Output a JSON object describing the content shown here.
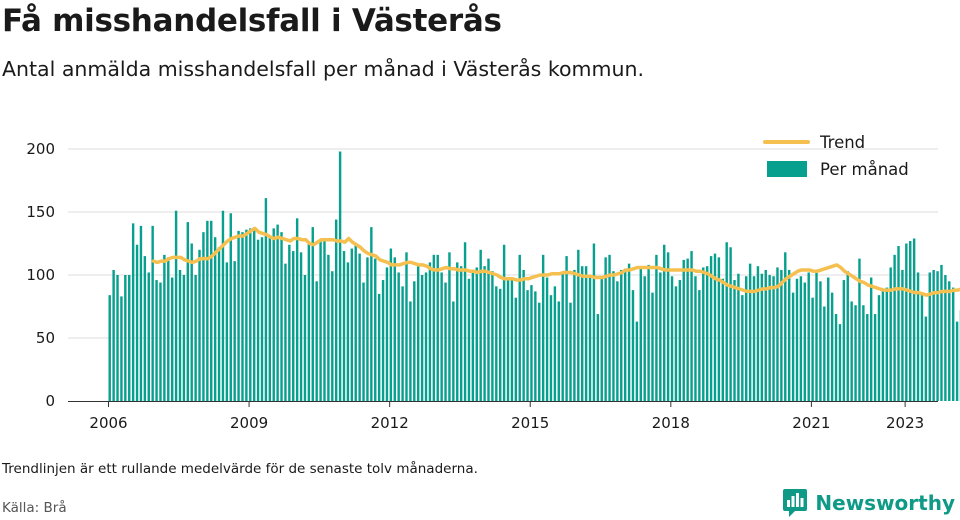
{
  "header": {
    "title": "Få misshandelsfall i Västerås",
    "subtitle": "Antal anmälda misshandelsfall per månad i Västerås kommun."
  },
  "footer": {
    "note": "Trendlinjen är ett rullande medelvärde för de senaste tolv månaderna.",
    "source": "Källa: Brå",
    "brand": "Newsworthy",
    "brand_icon": "newsworthy-logo-icon"
  },
  "colors": {
    "bars": "#07a08f",
    "trend": "#f5c04f",
    "grid": "#dcdcdc",
    "axis": "#333333",
    "brand": "#0e9a87"
  },
  "chart_data": {
    "type": "bar",
    "x_start": "2006-01",
    "x_interval": "month",
    "ylim": [
      0,
      200
    ],
    "yticks": [
      0,
      50,
      100,
      150,
      200
    ],
    "xticks": [
      "2006",
      "2009",
      "2012",
      "2015",
      "2018",
      "2021",
      "2023"
    ],
    "grid": true,
    "legend_position": "top-right",
    "series": [
      {
        "name": "Per månad",
        "style": "bar",
        "values": [
          84,
          104,
          100,
          83,
          100,
          100,
          141,
          124,
          139,
          115,
          102,
          139,
          96,
          94,
          116,
          114,
          98,
          151,
          104,
          100,
          142,
          125,
          100,
          120,
          134,
          143,
          143,
          130,
          122,
          151,
          110,
          149,
          111,
          135,
          134,
          136,
          137,
          138,
          128,
          130,
          161,
          130,
          137,
          140,
          134,
          109,
          124,
          119,
          145,
          118,
          100,
          126,
          138,
          95,
          128,
          129,
          116,
          103,
          144,
          198,
          119,
          110,
          121,
          124,
          117,
          94,
          114,
          138,
          113,
          85,
          96,
          106,
          121,
          114,
          102,
          91,
          118,
          79,
          95,
          107,
          100,
          102,
          110,
          116,
          116,
          102,
          94,
          118,
          79,
          110,
          107,
          126,
          97,
          104,
          106,
          120,
          107,
          113,
          103,
          91,
          89,
          124,
          96,
          96,
          82,
          116,
          104,
          88,
          92,
          87,
          78,
          116,
          98,
          84,
          91,
          79,
          102,
          115,
          78,
          104,
          120,
          107,
          107,
          100,
          125,
          69,
          98,
          114,
          116,
          103,
          95,
          104,
          105,
          109,
          88,
          63,
          106,
          99,
          108,
          86,
          116,
          102,
          124,
          118,
          99,
          91,
          96,
          112,
          113,
          119,
          99,
          88,
          106,
          107,
          115,
          117,
          114,
          97,
          126,
          122,
          96,
          101,
          84,
          99,
          109,
          99,
          107,
          101,
          104,
          100,
          99,
          106,
          104,
          118,
          104,
          86,
          97,
          99,
          94,
          102,
          82,
          103,
          95,
          75,
          98,
          86,
          69,
          61,
          96,
          103,
          79,
          76,
          113,
          76,
          69,
          98,
          69,
          84,
          89,
          90,
          106,
          116,
          123,
          104,
          125,
          127,
          129,
          102,
          86,
          67,
          102,
          104,
          103,
          108,
          100,
          95,
          90,
          63,
          72,
          104,
          118,
          100,
          105,
          95,
          91,
          89,
          84,
          103,
          79,
          82,
          99,
          85,
          88,
          80,
          93,
          87,
          100,
          88,
          68,
          85,
          113,
          69,
          75,
          102,
          101,
          101,
          86,
          72,
          89,
          102,
          82,
          96,
          80,
          93,
          87,
          87,
          119,
          115,
          85,
          88,
          72,
          100,
          60
        ],
        "color": "#07a08f"
      },
      {
        "name": "Trend",
        "style": "line",
        "start": "2006-12",
        "values": [
          111,
          110,
          111,
          111,
          113,
          114,
          114,
          114,
          112,
          111,
          110,
          111,
          113,
          113,
          113,
          115,
          118,
          121,
          124,
          127,
          129,
          130,
          131,
          131,
          133,
          135,
          137,
          134,
          133,
          132,
          130,
          129,
          130,
          129,
          128,
          127,
          129,
          129,
          128,
          128,
          125,
          124,
          126,
          128,
          128,
          128,
          128,
          127,
          127,
          126,
          129,
          126,
          124,
          122,
          119,
          117,
          116,
          115,
          112,
          111,
          110,
          108,
          108,
          108,
          109,
          110,
          110,
          109,
          108,
          108,
          107,
          105,
          104,
          104,
          105,
          106,
          105,
          105,
          104,
          104,
          104,
          103,
          103,
          102,
          103,
          103,
          102,
          101,
          100,
          98,
          97,
          97,
          97,
          96,
          96,
          97,
          97,
          98,
          99,
          100,
          100,
          100,
          101,
          101,
          101,
          102,
          102,
          102,
          101,
          100,
          99,
          99,
          99,
          98,
          98,
          98,
          99,
          100,
          100,
          101,
          102,
          104,
          104,
          105,
          106,
          106,
          106,
          106,
          106,
          106,
          105,
          104,
          104,
          104,
          104,
          104,
          104,
          104,
          104,
          103,
          103,
          102,
          101,
          99,
          97,
          96,
          94,
          92,
          91,
          90,
          89,
          88,
          87,
          87,
          87,
          88,
          89,
          89,
          90,
          90,
          91,
          94,
          97,
          99,
          101,
          103,
          104,
          104,
          104,
          103,
          103,
          104,
          105,
          106,
          107,
          108,
          106,
          103,
          101,
          99,
          97,
          95,
          94,
          92,
          91,
          90,
          89,
          88,
          88,
          88,
          89,
          89,
          89,
          88,
          87,
          86,
          86,
          85,
          84,
          85,
          86,
          86,
          87,
          87,
          87,
          88,
          88,
          89,
          89,
          88,
          88,
          88,
          88,
          89,
          91,
          91,
          91,
          90,
          90
        ]
      }
    ]
  }
}
